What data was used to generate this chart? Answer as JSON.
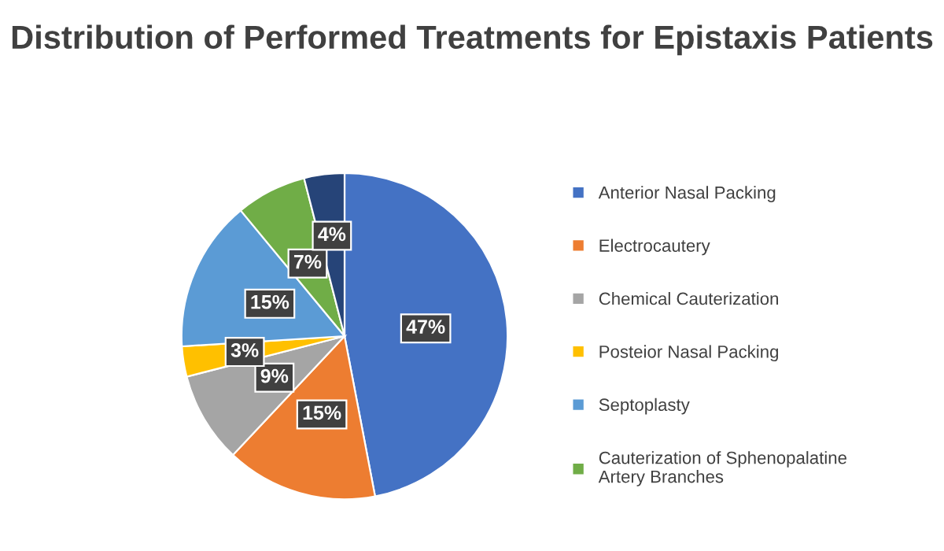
{
  "chart_data": {
    "type": "pie",
    "title": "Distribution of Performed Treatments for Epistaxis Patients",
    "categories": [
      "Anterior Nasal Packing",
      "Electrocautery",
      "Chemical Cauterization",
      "Posteior Nasal Packing",
      "Septoplasty",
      "Cauterization of Sphenopalatine Artery Branches",
      null
    ],
    "values": [
      47,
      15,
      9,
      3,
      15,
      7,
      4
    ],
    "colors": [
      "#4472c4",
      "#ed7d31",
      "#a5a5a5",
      "#ffc000",
      "#5b9bd5",
      "#70ad47",
      "#264478"
    ],
    "value_labels": [
      "47%",
      "15%",
      "9%",
      "3%",
      "15%",
      "7%",
      "4%"
    ],
    "legend": "right"
  }
}
